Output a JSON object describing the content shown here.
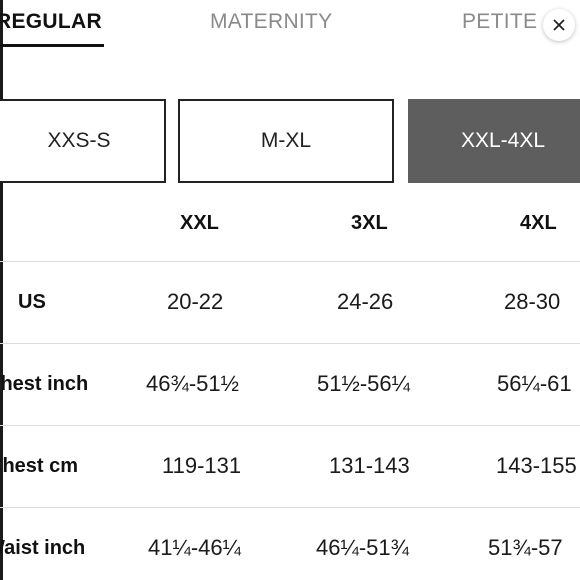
{
  "tabs": [
    {
      "label": "REGULAR",
      "active": true
    },
    {
      "label": "MATERNITY",
      "active": false
    },
    {
      "label": "PETITE",
      "active": false
    }
  ],
  "close_icon": "close-icon",
  "size_ranges": [
    {
      "label": "XXS-S",
      "selected": false
    },
    {
      "label": "M-XL",
      "selected": false
    },
    {
      "label": "XXL-4XL",
      "selected": true
    }
  ],
  "table": {
    "columns": [
      "XXL",
      "3XL",
      "4XL"
    ],
    "rows": [
      {
        "label": "US",
        "values": [
          "20-22",
          "24-26",
          "28-30"
        ]
      },
      {
        "label": "Chest inch",
        "values": [
          "46¾-51½",
          "51½-56¼",
          "56¼-61"
        ]
      },
      {
        "label": "Chest cm",
        "values": [
          "119-131",
          "131-143",
          "143-155"
        ]
      },
      {
        "label": "Waist inch",
        "values": [
          "41¼-46¼",
          "46¼-51¾",
          "51¾-57"
        ]
      }
    ]
  },
  "colors": {
    "selected_range_bg": "#5e5e5e",
    "inactive_tab": "#8a8a8a",
    "divider": "#dcdcdc"
  }
}
